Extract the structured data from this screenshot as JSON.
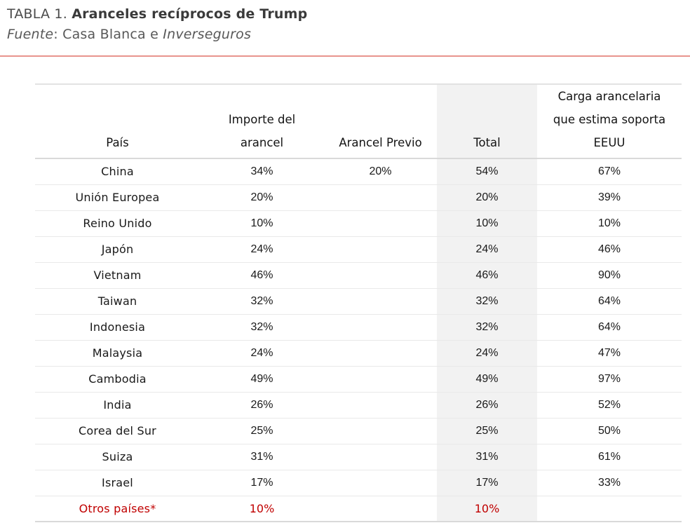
{
  "header": {
    "caption_prefix": "TABLA 1. ",
    "caption_title": "Aranceles recíprocos de Trump",
    "source_label": "Fuente",
    "source_mid": ": Casa Blanca e ",
    "source_brand": "Inverseguros"
  },
  "colors": {
    "accent_rule": "#e8948d",
    "highlight_red": "#c00000",
    "total_column_shade": "#f2f2f2",
    "table_border": "#d9d9d9",
    "row_line": "#e9e9e9"
  },
  "table": {
    "columns": [
      {
        "key": "country",
        "label": "País"
      },
      {
        "key": "importe",
        "label": "Importe del\narancel"
      },
      {
        "key": "previo",
        "label": "Arancel Previo"
      },
      {
        "key": "total",
        "label": "Total"
      },
      {
        "key": "carga",
        "label": "Carga arancelaria\nque estima soporta\nEEUU"
      }
    ],
    "rows": [
      {
        "country": "China",
        "importe": "34%",
        "previo": "20%",
        "total": "54%",
        "carga": "67%",
        "highlight": false
      },
      {
        "country": "Unión Europea",
        "importe": "20%",
        "previo": "",
        "total": "20%",
        "carga": "39%",
        "highlight": false
      },
      {
        "country": "Reino Unido",
        "importe": "10%",
        "previo": "",
        "total": "10%",
        "carga": "10%",
        "highlight": false
      },
      {
        "country": "Japón",
        "importe": "24%",
        "previo": "",
        "total": "24%",
        "carga": "46%",
        "highlight": false
      },
      {
        "country": "Vietnam",
        "importe": "46%",
        "previo": "",
        "total": "46%",
        "carga": "90%",
        "highlight": false
      },
      {
        "country": "Taiwan",
        "importe": "32%",
        "previo": "",
        "total": "32%",
        "carga": "64%",
        "highlight": false
      },
      {
        "country": "Indonesia",
        "importe": "32%",
        "previo": "",
        "total": "32%",
        "carga": "64%",
        "highlight": false
      },
      {
        "country": "Malaysia",
        "importe": "24%",
        "previo": "",
        "total": "24%",
        "carga": "47%",
        "highlight": false
      },
      {
        "country": "Cambodia",
        "importe": "49%",
        "previo": "",
        "total": "49%",
        "carga": "97%",
        "highlight": false
      },
      {
        "country": "India",
        "importe": "26%",
        "previo": "",
        "total": "26%",
        "carga": "52%",
        "highlight": false
      },
      {
        "country": "Corea del Sur",
        "importe": "25%",
        "previo": "",
        "total": "25%",
        "carga": "50%",
        "highlight": false
      },
      {
        "country": "Suiza",
        "importe": "31%",
        "previo": "",
        "total": "31%",
        "carga": "61%",
        "highlight": false
      },
      {
        "country": "Israel",
        "importe": "17%",
        "previo": "",
        "total": "17%",
        "carga": "33%",
        "highlight": false
      },
      {
        "country": "Otros países*",
        "importe": "10%",
        "previo": "",
        "total": "10%",
        "carga": "",
        "highlight": true
      }
    ]
  }
}
